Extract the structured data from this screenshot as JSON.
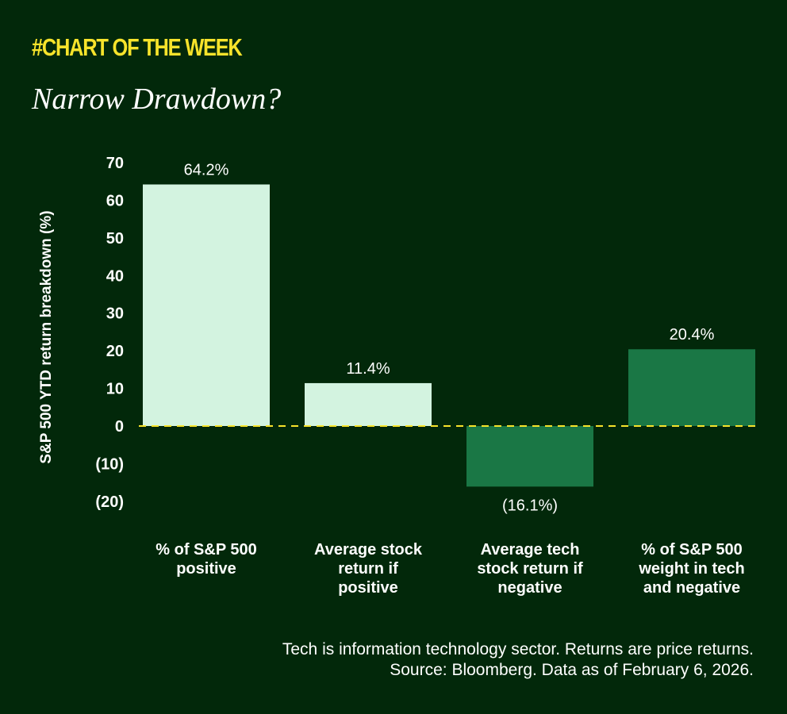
{
  "header": {
    "kicker": "#CHART OF THE WEEK",
    "title": "Narrow Drawdown?"
  },
  "chart_data": {
    "type": "bar",
    "ylabel": "S&P 500 YTD return breakdown (%)",
    "categories": [
      [
        "% of S&P 500",
        "positive"
      ],
      [
        "Average stock",
        "return if",
        "positive"
      ],
      [
        "Average tech",
        "stock return if",
        "negative"
      ],
      [
        "% of S&P 500",
        "weight in tech",
        "and negative"
      ]
    ],
    "values": [
      64.2,
      11.4,
      -16.1,
      20.4
    ],
    "data_labels": [
      "64.2%",
      "11.4%",
      "(16.1%)",
      "20.4%"
    ],
    "colors": [
      "#d3f3e0",
      "#d3f3e0",
      "#1a7745",
      "#1a7745"
    ],
    "ylim": [
      -20,
      70
    ],
    "yticks": [
      70,
      60,
      50,
      40,
      30,
      20,
      10,
      0,
      -10,
      -20
    ],
    "ytick_labels": [
      "70",
      "60",
      "50",
      "40",
      "30",
      "20",
      "10",
      "0",
      "(10)",
      "(20)"
    ],
    "zero_line_color": "#f7e32b",
    "grid": false
  },
  "footer": {
    "note_line1": "Tech is information technology sector. Returns are price returns.",
    "note_line2": "Source: Bloomberg. Data as of February 6, 2026."
  }
}
